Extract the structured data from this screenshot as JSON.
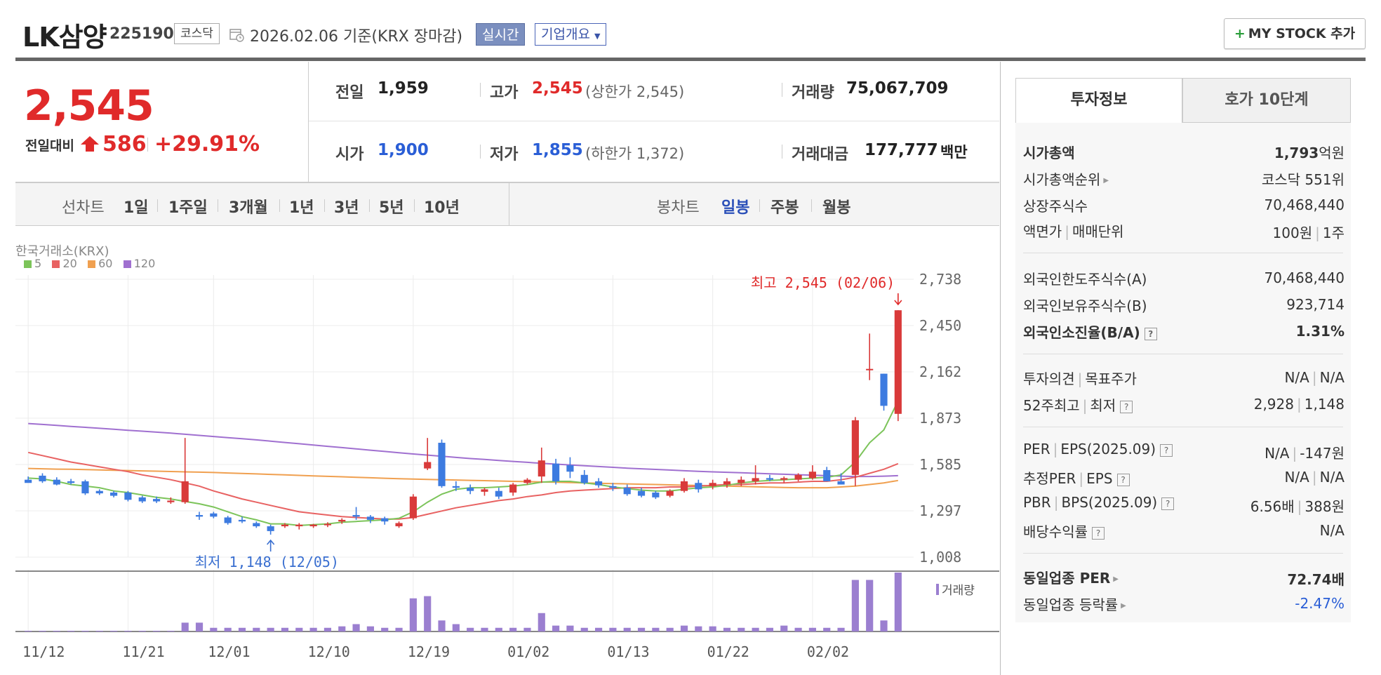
{
  "header": {
    "name": "LK삼양",
    "code": "225190",
    "market": "코스닥",
    "date": "2026.02.06 기준(KRX 장마감)",
    "realtime": "실시간",
    "company": "기업개요",
    "my_stock": "MY STOCK 추가"
  },
  "price": {
    "current": "2,545",
    "change_label": "전일대비",
    "change": "586",
    "rate": "+29.91%"
  },
  "quote": {
    "prev_label": "전일",
    "prev": "1,959",
    "open_label": "시가",
    "open": "1,900",
    "high_label": "고가",
    "high": "2,545",
    "upper_limit": "(상한가 2,545)",
    "low_label": "저가",
    "low": "1,855",
    "lower_limit": "(하한가 1,372)",
    "volume_label": "거래량",
    "volume": "75,067,709",
    "amount_label": "거래대금",
    "amount": "177,777",
    "amount_unit": "백만"
  },
  "toolbar": {
    "line_label": "선차트",
    "periods": [
      "1일",
      "1주일",
      "3개월",
      "1년",
      "3년",
      "5년",
      "10년"
    ],
    "candle_label": "봉차트",
    "candle_options": [
      "일봉",
      "주봉",
      "월봉"
    ],
    "candle_active": "일봉"
  },
  "chart_meta": {
    "exchange": "한국거래소(KRX)",
    "legend": [
      {
        "label": "5",
        "color": "#7cc45a"
      },
      {
        "label": "20",
        "color": "#e86262"
      },
      {
        "label": "60",
        "color": "#f0a050"
      },
      {
        "label": "120",
        "color": "#a070d0"
      }
    ],
    "high_annotation": "최고 2,545 (02/06)",
    "low_annotation": "최저 1,148 (12/05)",
    "volume_label": "거래량"
  },
  "chart_data": {
    "type": "candlestick",
    "y_ticks": [
      "2,738",
      "2,450",
      "2,162",
      "1,873",
      "1,585",
      "1,297",
      "1,008"
    ],
    "ylim": [
      1008,
      2738
    ],
    "x_ticks": [
      {
        "label": "11/12",
        "index": 0
      },
      {
        "label": "11/21",
        "index": 7
      },
      {
        "label": "12/01",
        "index": 13
      },
      {
        "label": "12/10",
        "index": 20
      },
      {
        "label": "12/19",
        "index": 27
      },
      {
        "label": "01/02",
        "index": 34
      },
      {
        "label": "01/13",
        "index": 41
      },
      {
        "label": "01/22",
        "index": 48
      },
      {
        "label": "02/02",
        "index": 55
      }
    ],
    "candles": [
      [
        1490,
        1510,
        1480,
        1470
      ],
      [
        1515,
        1530,
        1470,
        1480
      ],
      [
        1490,
        1505,
        1455,
        1460
      ],
      [
        1480,
        1495,
        1460,
        1470
      ],
      [
        1480,
        1490,
        1395,
        1405
      ],
      [
        1420,
        1430,
        1395,
        1405
      ],
      [
        1410,
        1420,
        1380,
        1390
      ],
      [
        1410,
        1420,
        1355,
        1365
      ],
      [
        1380,
        1390,
        1345,
        1355
      ],
      [
        1370,
        1385,
        1345,
        1355
      ],
      [
        1350,
        1380,
        1340,
        1360
      ],
      [
        1350,
        1750,
        1340,
        1480
      ],
      [
        1270,
        1290,
        1240,
        1260
      ],
      [
        1280,
        1290,
        1250,
        1260
      ],
      [
        1255,
        1265,
        1210,
        1220
      ],
      [
        1240,
        1260,
        1220,
        1230
      ],
      [
        1220,
        1230,
        1190,
        1200
      ],
      [
        1200,
        1210,
        1148,
        1170
      ],
      [
        1200,
        1220,
        1190,
        1210
      ],
      [
        1200,
        1220,
        1180,
        1210
      ],
      [
        1200,
        1215,
        1190,
        1210
      ],
      [
        1210,
        1225,
        1195,
        1215
      ],
      [
        1230,
        1250,
        1215,
        1240
      ],
      [
        1270,
        1320,
        1240,
        1260
      ],
      [
        1260,
        1270,
        1220,
        1240
      ],
      [
        1250,
        1260,
        1210,
        1230
      ],
      [
        1200,
        1230,
        1190,
        1220
      ],
      [
        1250,
        1400,
        1240,
        1385
      ],
      [
        1560,
        1750,
        1550,
        1600
      ],
      [
        1720,
        1740,
        1440,
        1450
      ],
      [
        1450,
        1480,
        1420,
        1440
      ],
      [
        1440,
        1460,
        1400,
        1420
      ],
      [
        1415,
        1440,
        1390,
        1430
      ],
      [
        1420,
        1440,
        1370,
        1385
      ],
      [
        1410,
        1470,
        1390,
        1460
      ],
      [
        1470,
        1500,
        1460,
        1490
      ],
      [
        1510,
        1690,
        1470,
        1610
      ],
      [
        1590,
        1620,
        1460,
        1480
      ],
      [
        1580,
        1630,
        1500,
        1540
      ],
      [
        1520,
        1550,
        1460,
        1470
      ],
      [
        1480,
        1500,
        1440,
        1455
      ],
      [
        1450,
        1470,
        1420,
        1440
      ],
      [
        1440,
        1460,
        1390,
        1400
      ],
      [
        1420,
        1440,
        1380,
        1390
      ],
      [
        1410,
        1420,
        1370,
        1380
      ],
      [
        1390,
        1430,
        1380,
        1420
      ],
      [
        1420,
        1500,
        1410,
        1480
      ],
      [
        1470,
        1490,
        1410,
        1430
      ],
      [
        1450,
        1490,
        1430,
        1470
      ],
      [
        1460,
        1500,
        1440,
        1480
      ],
      [
        1470,
        1510,
        1450,
        1490
      ],
      [
        1480,
        1580,
        1460,
        1500
      ],
      [
        1500,
        1520,
        1480,
        1490
      ],
      [
        1490,
        1510,
        1470,
        1500
      ],
      [
        1490,
        1530,
        1480,
        1520
      ],
      [
        1500,
        1580,
        1490,
        1540
      ],
      [
        1550,
        1570,
        1480,
        1480
      ],
      [
        1480,
        1530,
        1460,
        1460
      ],
      [
        1520,
        1880,
        1450,
        1860
      ],
      [
        2180,
        2400,
        2110,
        2180
      ],
      [
        2150,
        2150,
        1920,
        1950
      ],
      [
        1900,
        2545,
        1855,
        2545
      ]
    ],
    "ma5": [
      1500,
      1495,
      1480,
      1460,
      1450,
      1440,
      1420,
      1410,
      1395,
      1380,
      1370,
      1355,
      1340,
      1320,
      1290,
      1260,
      1240,
      1215,
      1215,
      1205,
      1210,
      1215,
      1225,
      1230,
      1235,
      1240,
      1250,
      1290,
      1350,
      1400,
      1430,
      1440,
      1440,
      1445,
      1450,
      1460,
      1475,
      1480,
      1480,
      1470,
      1460,
      1445,
      1435,
      1425,
      1420,
      1420,
      1430,
      1440,
      1445,
      1455,
      1470,
      1480,
      1485,
      1490,
      1495,
      1500,
      1505,
      1520,
      1600,
      1720,
      1800,
      1980
    ],
    "ma20": [
      1660,
      1640,
      1620,
      1600,
      1585,
      1570,
      1555,
      1540,
      1520,
      1505,
      1490,
      1470,
      1450,
      1420,
      1395,
      1370,
      1350,
      1330,
      1310,
      1290,
      1280,
      1270,
      1260,
      1255,
      1250,
      1245,
      1245,
      1255,
      1275,
      1295,
      1315,
      1330,
      1345,
      1360,
      1370,
      1385,
      1395,
      1410,
      1420,
      1425,
      1430,
      1435,
      1440,
      1440,
      1440,
      1445,
      1445,
      1450,
      1455,
      1460,
      1460,
      1465,
      1470,
      1470,
      1475,
      1480,
      1480,
      1490,
      1505,
      1530,
      1555,
      1590
    ],
    "ma60": [
      1560,
      1558,
      1556,
      1555,
      1553,
      1551,
      1549,
      1547,
      1545,
      1543,
      1541,
      1539,
      1537,
      1535,
      1532,
      1529,
      1526,
      1523,
      1520,
      1517,
      1514,
      1511,
      1508,
      1505,
      1502,
      1499,
      1496,
      1494,
      1492,
      1490,
      1488,
      1486,
      1484,
      1482,
      1480,
      1478,
      1476,
      1474,
      1472,
      1470,
      1468,
      1466,
      1464,
      1462,
      1460,
      1458,
      1456,
      1454,
      1452,
      1450,
      1448,
      1446,
      1444,
      1442,
      1440,
      1440,
      1440,
      1445,
      1450,
      1460,
      1470,
      1485
    ],
    "ma120": [
      1840,
      1834,
      1828,
      1822,
      1816,
      1810,
      1804,
      1798,
      1792,
      1786,
      1780,
      1773,
      1766,
      1759,
      1752,
      1745,
      1738,
      1730,
      1722,
      1714,
      1706,
      1698,
      1690,
      1682,
      1674,
      1666,
      1658,
      1650,
      1643,
      1636,
      1629,
      1622,
      1616,
      1610,
      1604,
      1598,
      1592,
      1587,
      1582,
      1577,
      1572,
      1567,
      1562,
      1558,
      1554,
      1550,
      1546,
      1542,
      1539,
      1536,
      1533,
      1530,
      1527,
      1524,
      1521,
      1518,
      1515,
      1512,
      1510,
      1510,
      1512,
      1515
    ],
    "volume": [
      1,
      1,
      1,
      1,
      1,
      1,
      1,
      1,
      1,
      1,
      1,
      12,
      12,
      5,
      5,
      5,
      5,
      5,
      5,
      5,
      5,
      5,
      7,
      10,
      7,
      5,
      5,
      45,
      48,
      15,
      10,
      5,
      5,
      5,
      5,
      5,
      25,
      8,
      8,
      5,
      5,
      5,
      5,
      5,
      5,
      5,
      8,
      7,
      7,
      5,
      5,
      5,
      5,
      8,
      5,
      5,
      5,
      5,
      70,
      70,
      15,
      80
    ]
  },
  "info": {
    "tab_invest": "투자정보",
    "tab_quote": "호가 10단계",
    "market_cap_label": "시가총액",
    "market_cap": "1,793",
    "market_cap_unit": "억원",
    "rank_label": "시가총액순위",
    "rank": "코스닥 551위",
    "shares_label": "상장주식수",
    "shares": "70,468,440",
    "face_label": "액면가",
    "unit_label": "매매단위",
    "face": "100원",
    "unit": "1주",
    "foreign_limit_label": "외국인한도주식수(A)",
    "foreign_limit": "70,468,440",
    "foreign_hold_label": "외국인보유주식수(B)",
    "foreign_hold": "923,714",
    "foreign_rate_label": "외국인소진율(B/A)",
    "foreign_rate": "1.31%",
    "opinion_label": "투자의견",
    "target_label": "목표주가",
    "opinion": "N/A",
    "target": "N/A",
    "w52_high_label": "52주최고",
    "w52_low_label": "최저",
    "w52_high": "2,928",
    "w52_low": "1,148",
    "per_label": "PER",
    "eps_label": "EPS(2025.09)",
    "per": "N/A",
    "eps": "-147원",
    "est_per_label": "추정PER",
    "est_eps_label": "EPS",
    "est_per": "N/A",
    "est_eps": "N/A",
    "pbr_label": "PBR",
    "bps_label": "BPS(2025.09)",
    "pbr": "6.56배",
    "bps": "388원",
    "dividend_label": "배당수익률",
    "dividend": "N/A",
    "sector_per_label": "동일업종 PER",
    "sector_per": "72.74배",
    "sector_rate_label": "동일업종 등락률",
    "sector_rate": "-2.47%"
  },
  "colors": {
    "up": "#e02a2a",
    "down": "#2a5ed6",
    "candle_up": "#d93a3a",
    "candle_down": "#3d7be0",
    "volume": "#9b7fd0"
  }
}
